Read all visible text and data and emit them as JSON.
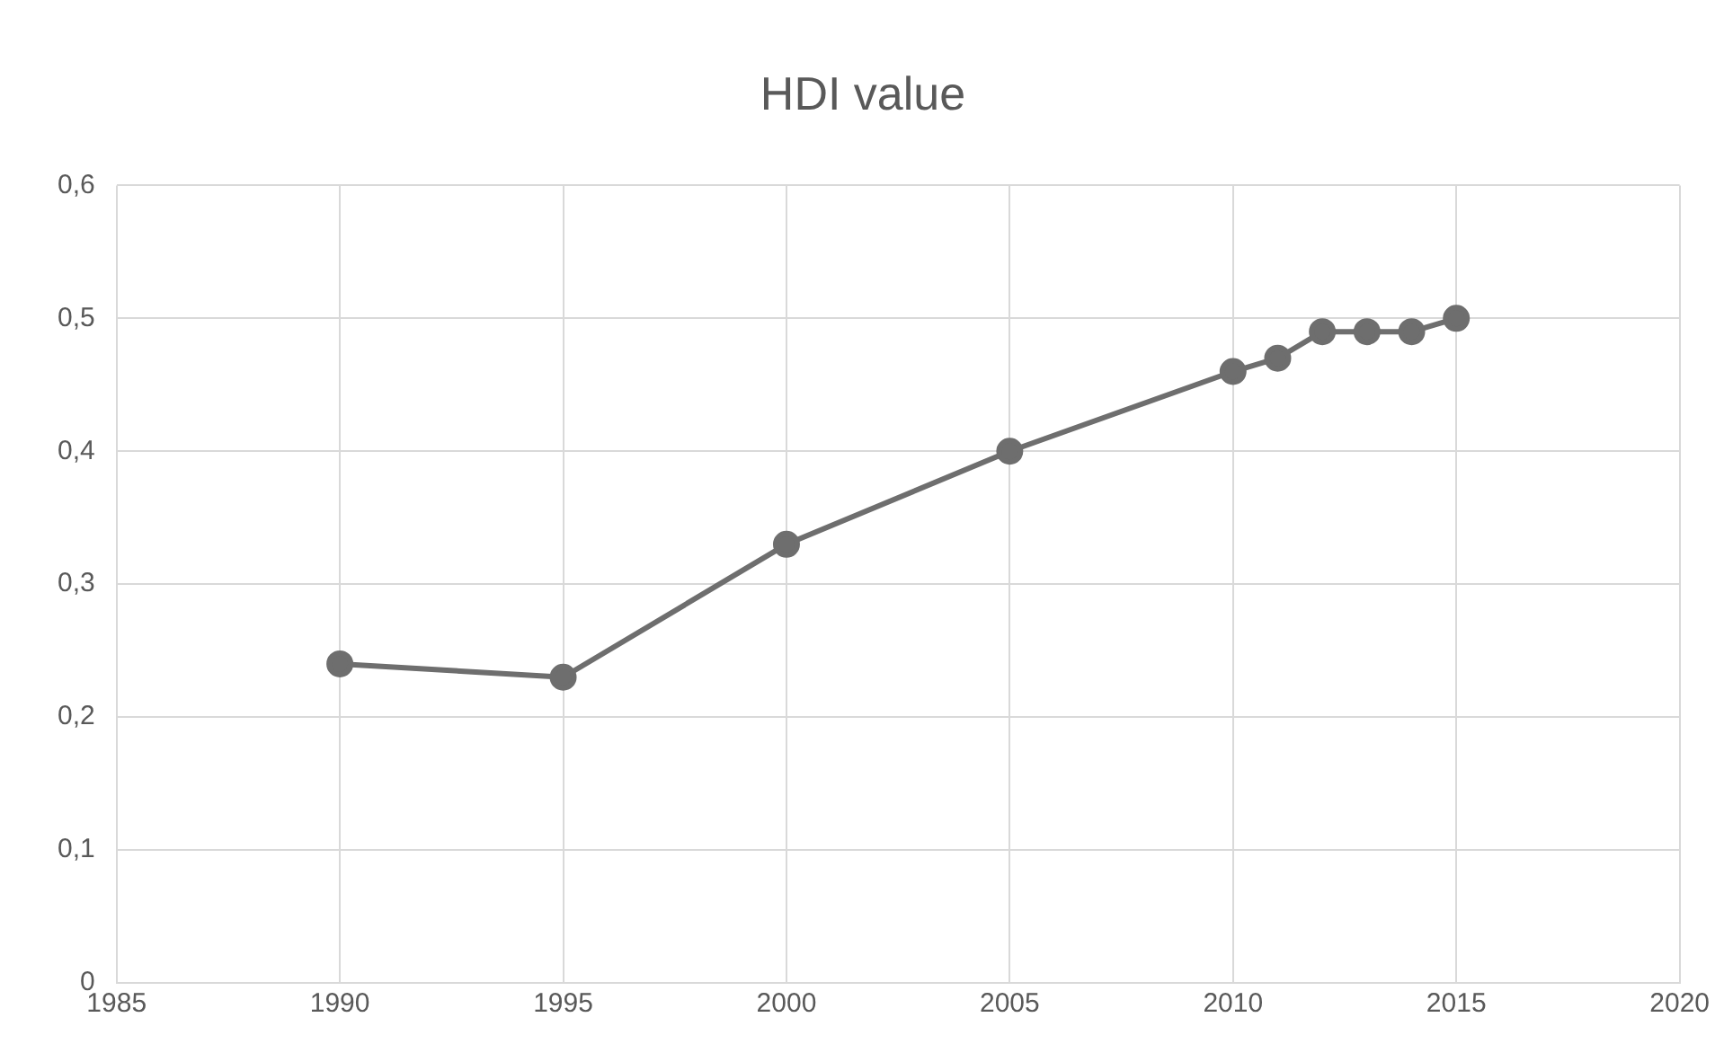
{
  "chart_data": {
    "type": "line",
    "title": "HDI value",
    "x": [
      1990,
      1995,
      2000,
      2005,
      2010,
      2011,
      2012,
      2013,
      2014,
      2015
    ],
    "series": [
      {
        "color": "#6e6e6e",
        "values": [
          0.24,
          0.23,
          0.33,
          0.4,
          0.46,
          0.47,
          0.49,
          0.49,
          0.49,
          0.5
        ]
      }
    ],
    "xlim": [
      1985,
      2020
    ],
    "xticks": [
      1985,
      1990,
      1995,
      2000,
      2005,
      2010,
      2015,
      2020
    ],
    "ylim": [
      0,
      0.6
    ],
    "yticks": [
      0,
      {
        "value": 0.1,
        "label": "0,1"
      },
      {
        "value": 0.2,
        "label": "0,2"
      },
      {
        "value": 0.3,
        "label": "0,3"
      },
      {
        "value": 0.4,
        "label": "0,4"
      },
      {
        "value": 0.5,
        "label": "0,5"
      },
      {
        "value": 0.6,
        "label": "0,6"
      }
    ],
    "grid": true,
    "legend": false,
    "marker": "circle",
    "line_style": "solid"
  }
}
